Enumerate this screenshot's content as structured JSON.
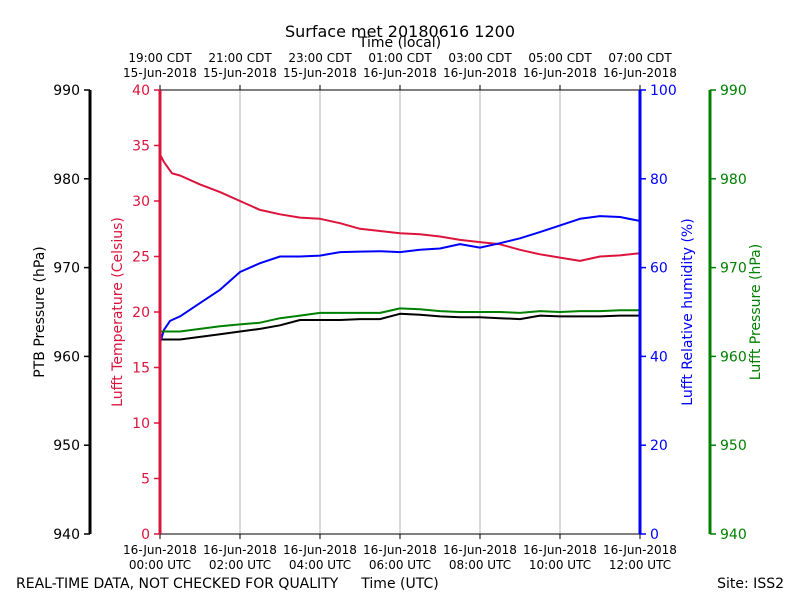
{
  "chart_data": {
    "type": "line",
    "title": "Surface met 20180616 1200",
    "top_axis_label": "Time (local)",
    "xlabel": "Time (UTC)",
    "footer_left": "REAL-TIME DATA, NOT CHECKED FOR QUALITY",
    "footer_right": "Site: ISS2",
    "x_range_hours": [
      0,
      12
    ],
    "x_ticks": [
      {
        "hour": 0,
        "utc_date": "16-Jun-2018",
        "utc_time": "00:00 UTC",
        "local_time": "19:00 CDT",
        "local_date": "15-Jun-2018"
      },
      {
        "hour": 2,
        "utc_date": "16-Jun-2018",
        "utc_time": "02:00 UTC",
        "local_time": "21:00 CDT",
        "local_date": "15-Jun-2018"
      },
      {
        "hour": 4,
        "utc_date": "16-Jun-2018",
        "utc_time": "04:00 UTC",
        "local_time": "23:00 CDT",
        "local_date": "15-Jun-2018"
      },
      {
        "hour": 6,
        "utc_date": "16-Jun-2018",
        "utc_time": "06:00 UTC",
        "local_time": "01:00 CDT",
        "local_date": "16-Jun-2018"
      },
      {
        "hour": 8,
        "utc_date": "16-Jun-2018",
        "utc_time": "08:00 UTC",
        "local_time": "03:00 CDT",
        "local_date": "16-Jun-2018"
      },
      {
        "hour": 10,
        "utc_date": "16-Jun-2018",
        "utc_time": "10:00 UTC",
        "local_time": "05:00 CDT",
        "local_date": "16-Jun-2018"
      },
      {
        "hour": 12,
        "utc_date": "16-Jun-2018",
        "utc_time": "12:00 UTC",
        "local_time": "07:00 CDT",
        "local_date": "16-Jun-2018"
      }
    ],
    "axes": [
      {
        "id": "ptb",
        "label": "PTB Pressure (hPa)",
        "color": "#000000",
        "range": [
          940,
          990
        ],
        "ticks": [
          "940",
          "950",
          "960",
          "970",
          "980",
          "990"
        ]
      },
      {
        "id": "temp",
        "label": "Lufft Temperature (Celsius)",
        "color": "#dc143c",
        "range": [
          0,
          40
        ],
        "ticks": [
          "0",
          "5",
          "10",
          "15",
          "20",
          "25",
          "30",
          "35",
          "40"
        ]
      },
      {
        "id": "rh",
        "label": "Lufft Relative humidity (%)",
        "color": "#0000ff",
        "range": [
          0,
          100
        ],
        "ticks": [
          "0",
          "20",
          "40",
          "60",
          "80",
          "100"
        ]
      },
      {
        "id": "lufftp",
        "label": "Lufft Pressure (hPa)",
        "color": "#008000",
        "range": [
          940,
          990
        ],
        "ticks": [
          "940",
          "950",
          "960",
          "970",
          "980",
          "990"
        ]
      }
    ],
    "series": [
      {
        "name": "PTB Pressure",
        "axis": "ptb",
        "color": "#000000",
        "x": [
          0,
          0.5,
          1,
          1.5,
          2,
          2.5,
          3,
          3.5,
          4,
          4.5,
          5,
          5.5,
          6,
          6.5,
          7,
          7.5,
          8,
          8.5,
          9,
          9.5,
          10,
          10.5,
          11,
          11.5,
          12
        ],
        "values": [
          961.9,
          961.9,
          962.2,
          962.5,
          962.8,
          963.1,
          963.5,
          964.1,
          964.1,
          964.1,
          964.2,
          964.2,
          964.8,
          964.7,
          964.5,
          964.4,
          964.4,
          964.3,
          964.2,
          964.6,
          964.5,
          964.5,
          964.5,
          964.6,
          964.6
        ]
      },
      {
        "name": "Lufft Temperature",
        "axis": "temp",
        "color": "#dc143c",
        "x": [
          0,
          0.1,
          0.3,
          0.5,
          1,
          1.5,
          2,
          2.5,
          3,
          3.5,
          4,
          4.5,
          5,
          5.5,
          6,
          6.5,
          7,
          7.5,
          8,
          8.5,
          9,
          9.5,
          10,
          10.5,
          11,
          11.5,
          12
        ],
        "values": [
          34.2,
          33.5,
          32.5,
          32.3,
          31.5,
          30.8,
          30.0,
          29.2,
          28.8,
          28.5,
          28.4,
          28.0,
          27.5,
          27.3,
          27.1,
          27.0,
          26.8,
          26.5,
          26.3,
          26.1,
          25.6,
          25.2,
          24.9,
          24.6,
          25.0,
          25.1,
          25.3
        ]
      },
      {
        "name": "Lufft Relative humidity",
        "axis": "rh",
        "color": "#0000ff",
        "x": [
          0,
          0.1,
          0.25,
          0.5,
          1,
          1.5,
          2,
          2.5,
          3,
          3.5,
          4,
          4.5,
          5,
          5.5,
          6,
          6.5,
          7,
          7.5,
          8,
          8.5,
          9,
          9.5,
          10,
          10.5,
          11,
          11.5,
          12
        ],
        "values": [
          43,
          46,
          48,
          49,
          52,
          55,
          59,
          61,
          62.5,
          62.5,
          62.7,
          63.5,
          63.6,
          63.7,
          63.5,
          64.0,
          64.3,
          65.3,
          64.5,
          65.5,
          66.6,
          68.0,
          69.5,
          71.0,
          71.6,
          71.4,
          70.5
        ]
      },
      {
        "name": "Lufft Pressure",
        "axis": "lufftp",
        "color": "#008000",
        "x": [
          0,
          0.5,
          1,
          1.5,
          2,
          2.5,
          3,
          3.5,
          4,
          4.5,
          5,
          5.5,
          6,
          6.5,
          7,
          7.5,
          8,
          8.5,
          9,
          9.5,
          10,
          10.5,
          11,
          11.5,
          12
        ],
        "values": [
          962.8,
          962.8,
          963.1,
          963.4,
          963.6,
          963.8,
          964.3,
          964.6,
          964.9,
          964.9,
          964.9,
          964.9,
          965.4,
          965.3,
          965.1,
          965.0,
          965.0,
          965.0,
          964.9,
          965.1,
          965.0,
          965.1,
          965.1,
          965.2,
          965.2
        ]
      }
    ]
  }
}
